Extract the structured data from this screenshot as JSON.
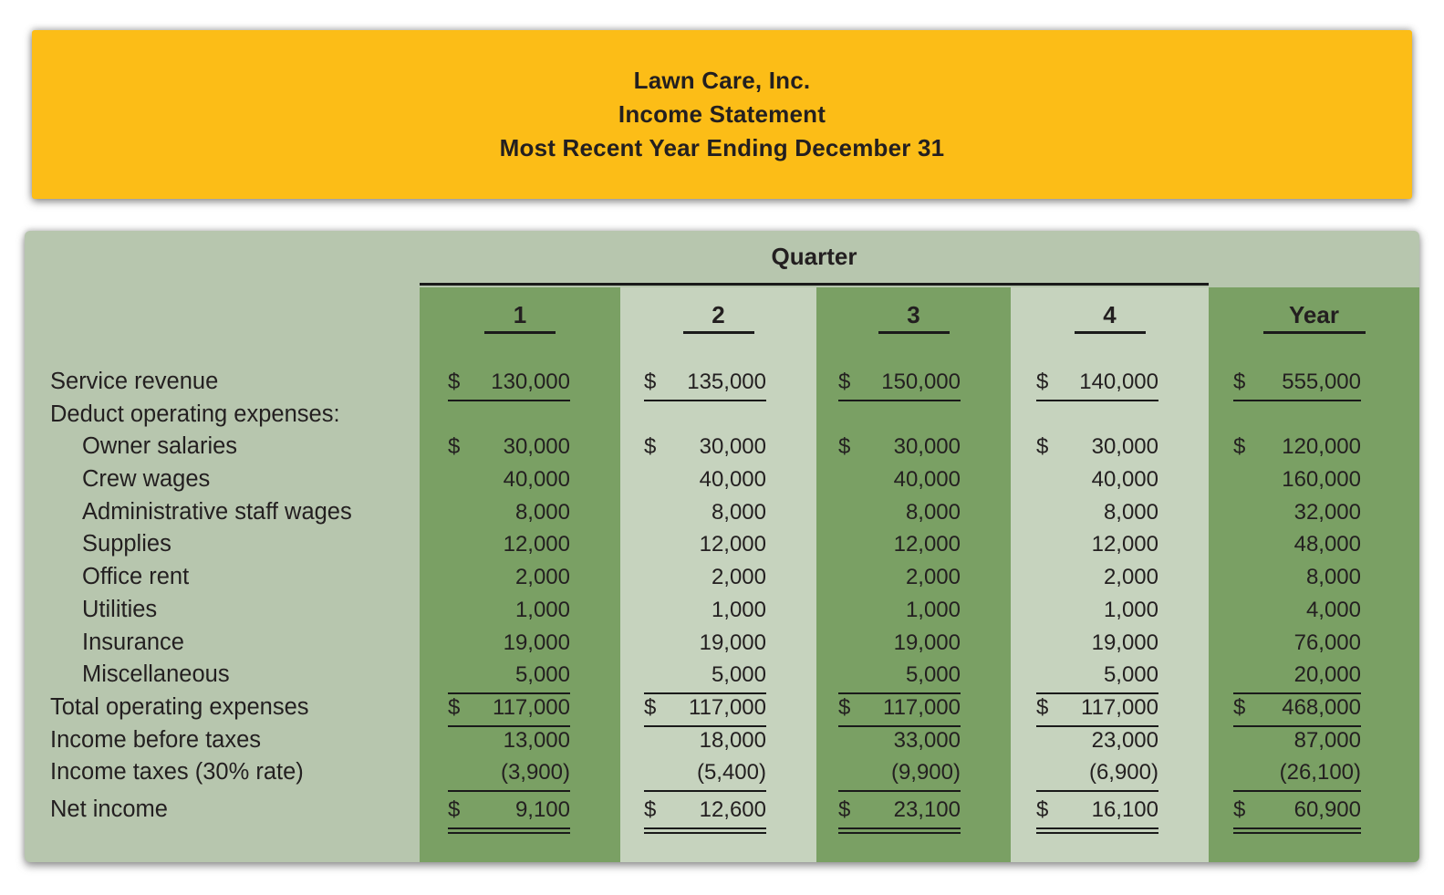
{
  "banner": {
    "company": "Lawn Care, Inc.",
    "statement": "Income Statement",
    "period": "Most Recent Year Ending December 31"
  },
  "table": {
    "quarter_label": "Quarter",
    "column_headers": [
      "1",
      "2",
      "3",
      "4",
      "Year"
    ],
    "rows": [
      {
        "label": "Service revenue",
        "indent": 0,
        "underline": "single",
        "cells": [
          "$130,000",
          "$135,000",
          "$ 150,000",
          "$ 140,000",
          "$555,000"
        ]
      },
      {
        "label": "Deduct operating expenses:",
        "indent": 0,
        "underline": "none",
        "cells": [
          "",
          "",
          "",
          "",
          ""
        ]
      },
      {
        "label": "Owner salaries",
        "indent": 1,
        "underline": "none",
        "cells": [
          "$ 30,000",
          "$ 30,000",
          "$ 30,000",
          "$ 30,000",
          "$120,000"
        ]
      },
      {
        "label": "Crew wages",
        "indent": 1,
        "underline": "none",
        "cells": [
          "40,000",
          "40,000",
          "40,000",
          "40,000",
          "160,000"
        ]
      },
      {
        "label": "Administrative staff wages",
        "indent": 1,
        "underline": "none",
        "cells": [
          "8,000",
          "8,000",
          "8,000",
          "8,000",
          "32,000"
        ]
      },
      {
        "label": "Supplies",
        "indent": 1,
        "underline": "none",
        "cells": [
          "12,000",
          "12,000",
          "12,000",
          "12,000",
          "48,000"
        ]
      },
      {
        "label": "Office rent",
        "indent": 1,
        "underline": "none",
        "cells": [
          "2,000",
          "2,000",
          "2,000",
          "2,000",
          "8,000"
        ]
      },
      {
        "label": "Utilities",
        "indent": 1,
        "underline": "none",
        "cells": [
          "1,000",
          "1,000",
          "1,000",
          "1,000",
          "4,000"
        ]
      },
      {
        "label": "Insurance",
        "indent": 1,
        "underline": "none",
        "cells": [
          "19,000",
          "19,000",
          "19,000",
          "19,000",
          "76,000"
        ]
      },
      {
        "label": "Miscellaneous",
        "indent": 1,
        "underline": "single",
        "cells": [
          "5,000",
          "5,000",
          "5,000",
          "5,000",
          "20,000"
        ]
      },
      {
        "label": "Total operating expenses",
        "indent": 0,
        "underline": "single",
        "cells": [
          "$117,000",
          "$117,000",
          "$ 117,000",
          "$ 117,000",
          "$468,000"
        ]
      },
      {
        "label": "Income before taxes",
        "indent": 0,
        "underline": "none",
        "cells": [
          "13,000",
          "18,000",
          "33,000",
          "23,000",
          "87,000"
        ]
      },
      {
        "label": "Income taxes (30% rate)",
        "indent": 0,
        "underline": "single",
        "cells": [
          "(3,900)",
          "(5,400)",
          "(9,900)",
          "(6,900)",
          "(26,100)"
        ]
      },
      {
        "label": "Net income",
        "indent": 0,
        "underline": "double",
        "extra_gap_before": true,
        "cells": [
          "$ 9,100",
          "$ 12,600",
          "$ 23,100",
          "$ 16,100",
          "$ 60,900"
        ]
      }
    ]
  },
  "colors": {
    "yellow": "#fcbd17",
    "card-bg": "#b7c6ae",
    "stripe-dark": "#7aa064",
    "stripe-light": "#c6d3be",
    "ink": "#231f20",
    "line": "#1a1a1a"
  }
}
